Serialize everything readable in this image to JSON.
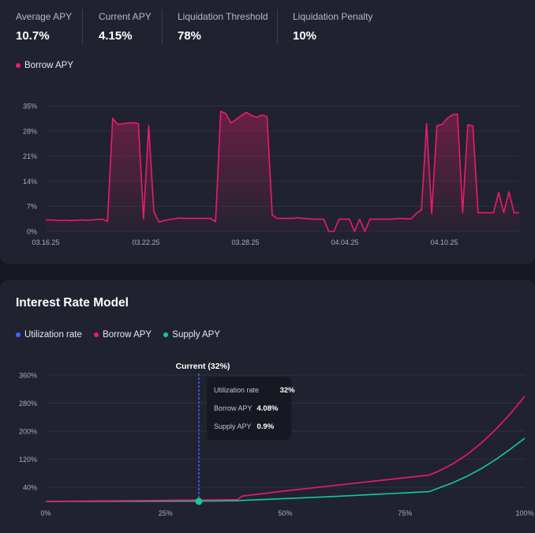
{
  "stats": [
    {
      "label": "Average APY",
      "value": "10.7%"
    },
    {
      "label": "Current APY",
      "value": "4.15%"
    },
    {
      "label": "Liquidation Threshold",
      "value": "78%"
    },
    {
      "label": "Liquidation Penalty",
      "value": "10%"
    }
  ],
  "colors": {
    "borrow": "#f0196c",
    "supply": "#14c99a",
    "utilization": "#3f63ff",
    "grid": "#2c3040",
    "axis_text": "#a8acba"
  },
  "apy_legend": {
    "label": "Borrow APY"
  },
  "interest_model": {
    "title": "Interest Rate Model",
    "legend": {
      "utilization": "Utilization rate",
      "borrow": "Borrow APY",
      "supply": "Supply APY"
    },
    "current_label": "Current (32%)",
    "tooltip": {
      "utilization_label": "Utilization rate",
      "utilization_value": "32%",
      "borrow_label": "Borrow APY",
      "borrow_value": "4.08%",
      "supply_label": "Supply APY",
      "supply_value": "0.9%"
    }
  },
  "chart_data": [
    {
      "type": "area",
      "title": "",
      "series": [
        {
          "name": "Borrow APY",
          "values": [
            3.2,
            3.2,
            3.1,
            3.0,
            3.1,
            3.0,
            3.1,
            3.2,
            3.1,
            3.2,
            3.3,
            3.4,
            2.8,
            31.5,
            29.8,
            30.0,
            30.2,
            30.3,
            30.0,
            3.5,
            29.5,
            5.5,
            2.6,
            3.0,
            3.3,
            3.5,
            3.7,
            3.6,
            3.6,
            3.6,
            3.6,
            3.6,
            3.6,
            2.7,
            33.5,
            32.8,
            30.2,
            31.2,
            32.3,
            33.2,
            32.3,
            31.8,
            32.4,
            32.0,
            4.5,
            3.6,
            3.6,
            3.6,
            3.6,
            3.8,
            3.6,
            3.5,
            3.4,
            3.4,
            3.4,
            0.0,
            0.0,
            3.4,
            3.4,
            3.4,
            0.0,
            3.4,
            0.0,
            3.4,
            3.4,
            3.4,
            3.4,
            3.4,
            3.5,
            3.6,
            3.5,
            3.5,
            5.0,
            6.0,
            30.0,
            5.0,
            29.5,
            29.8,
            31.5,
            32.5,
            32.7,
            5.2,
            29.7,
            29.4,
            5.2,
            5.2,
            5.2,
            5.2,
            10.8,
            5.2,
            11.0,
            5.2,
            5.2
          ]
        }
      ],
      "x_ticks": [
        "03.16.25",
        "03.22.25",
        "03.28.25",
        "04.04.25",
        "04.10.25"
      ],
      "y_ticks": [
        "0%",
        "7%",
        "14%",
        "21%",
        "28%",
        "35%"
      ],
      "ylim": [
        0,
        35
      ],
      "grid": true
    },
    {
      "type": "line",
      "title": "Interest Rate Model",
      "x": [
        0,
        10,
        20,
        32,
        40,
        41,
        50,
        60,
        70,
        80,
        82,
        85,
        88,
        91,
        94,
        97,
        100
      ],
      "series": [
        {
          "name": "Borrow APY",
          "values": [
            0,
            1.3,
            2.5,
            4.08,
            5.1,
            15,
            30,
            45,
            60,
            75,
            86,
            107,
            134,
            167,
            206,
            250,
            300
          ]
        },
        {
          "name": "Supply APY",
          "values": [
            0,
            0.2,
            0.5,
            0.9,
            1.8,
            3,
            8,
            14,
            21,
            28,
            38,
            53,
            72,
            94,
            120,
            149,
            180
          ]
        }
      ],
      "x_ticks": [
        "0%",
        "25%",
        "50%",
        "75%",
        "100%"
      ],
      "y_ticks": [
        "40%",
        "120%",
        "200%",
        "280%",
        "360%"
      ],
      "xlim": [
        0,
        100
      ],
      "ylim": [
        0,
        360
      ],
      "grid": true
    }
  ]
}
